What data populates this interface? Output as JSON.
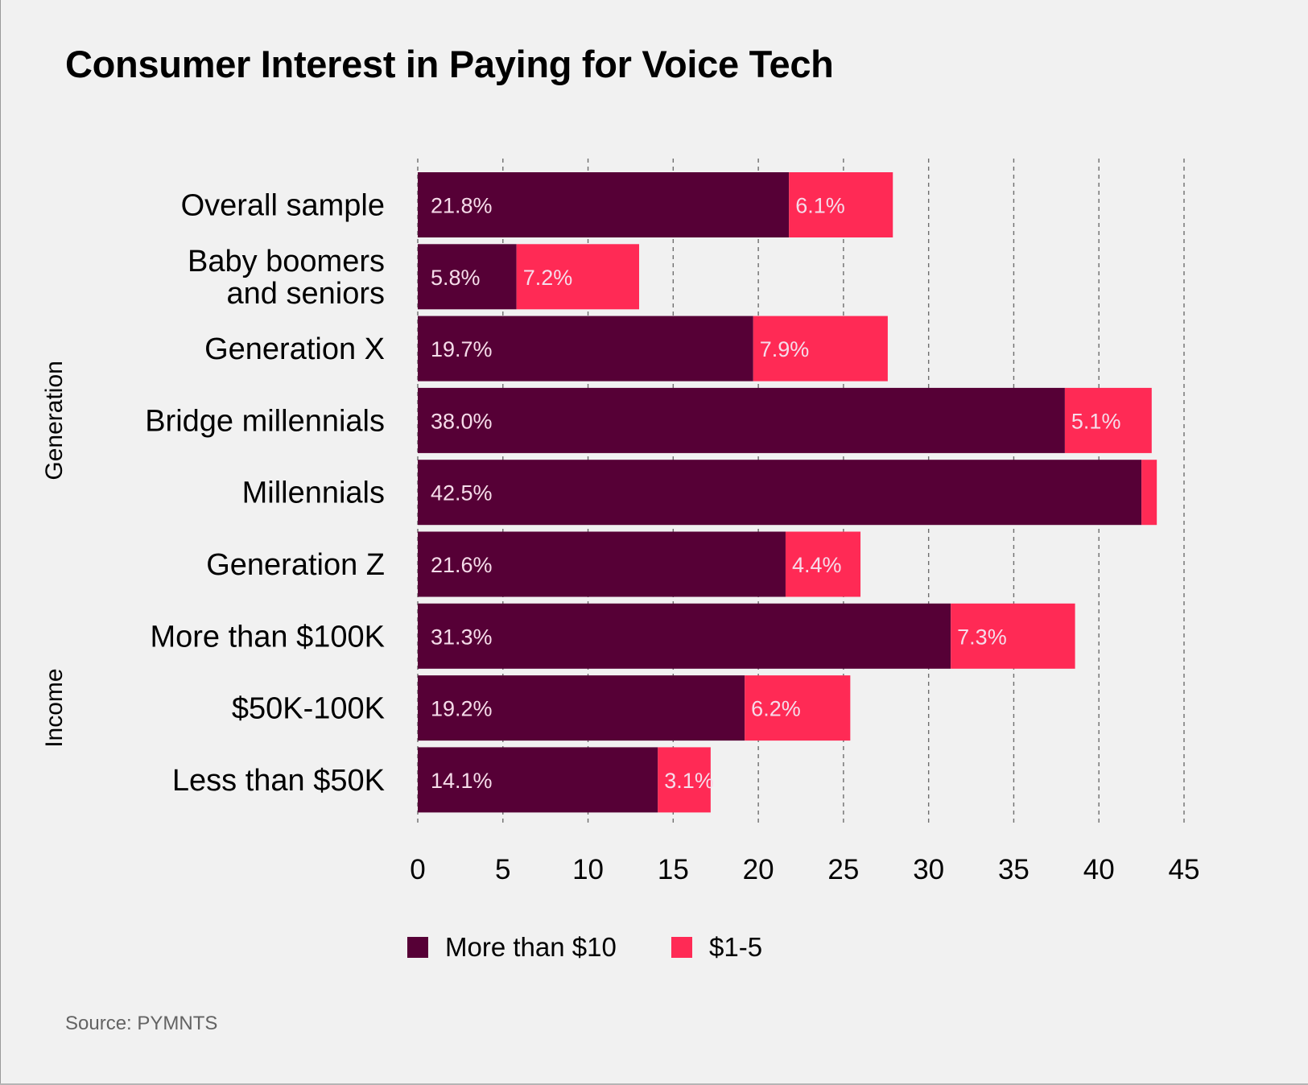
{
  "title": "Consumer Interest in Paying for Voice Tech",
  "source": "Source: PYMNTS",
  "colors": {
    "more_than_10": "#560036",
    "one_to_five": "#ff2a55",
    "value_label": "#f6dcea",
    "grid": "#6e6e6e"
  },
  "chart_data": {
    "type": "bar",
    "orientation": "horizontal",
    "stacked": true,
    "title": "Consumer Interest in Paying for Voice Tech",
    "xlabel": "",
    "ylabel": "",
    "xlim": [
      0,
      45
    ],
    "xticks": [
      0,
      5,
      10,
      15,
      20,
      25,
      30,
      35,
      40,
      45
    ],
    "tick_labels": [
      "0",
      "5",
      "10",
      "15",
      "20",
      "25",
      "30",
      "35",
      "40",
      "45"
    ],
    "grid": "vertical dashed",
    "categories": [
      "Overall sample",
      "Baby boomers and seniors",
      "Generation X",
      "Bridge millennials",
      "Millennials",
      "Generation Z",
      "More than $100K",
      "$50K-100K",
      "Less than $50K"
    ],
    "category_lines": [
      [
        "Overall sample"
      ],
      [
        "Baby boomers",
        "and seniors"
      ],
      [
        "Generation X"
      ],
      [
        "Bridge millennials"
      ],
      [
        "Millennials"
      ],
      [
        "Generation Z"
      ],
      [
        "More than $100K"
      ],
      [
        "$50K-100K"
      ],
      [
        "Less than $50K"
      ]
    ],
    "groups": [
      {
        "name": "Generation",
        "categories": [
          "Baby boomers and seniors",
          "Generation X",
          "Bridge millennials",
          "Millennials",
          "Generation Z"
        ]
      },
      {
        "name": "Income",
        "categories": [
          "More than $100K",
          "$50K-100K",
          "Less than $50K"
        ]
      }
    ],
    "series": [
      {
        "name": "More than $10",
        "color": "#560036",
        "values": [
          21.8,
          5.8,
          19.7,
          38.0,
          42.5,
          21.6,
          31.3,
          19.2,
          14.1
        ],
        "labels": [
          "21.8%",
          "5.8%",
          "19.7%",
          "38.0%",
          "42.5%",
          "21.6%",
          "31.3%",
          "19.2%",
          "14.1%"
        ]
      },
      {
        "name": "$1-5",
        "color": "#ff2a55",
        "values": [
          6.1,
          7.2,
          7.9,
          5.1,
          0.9,
          4.4,
          7.3,
          6.2,
          3.1
        ],
        "labels": [
          "6.1%",
          "7.2%",
          "7.9%",
          "5.1%",
          "",
          "4.4%",
          "7.3%",
          "6.2%",
          "3.1%"
        ]
      }
    ],
    "legend": {
      "position": "bottom",
      "entries": [
        "More than $10",
        "$1-5"
      ]
    }
  }
}
